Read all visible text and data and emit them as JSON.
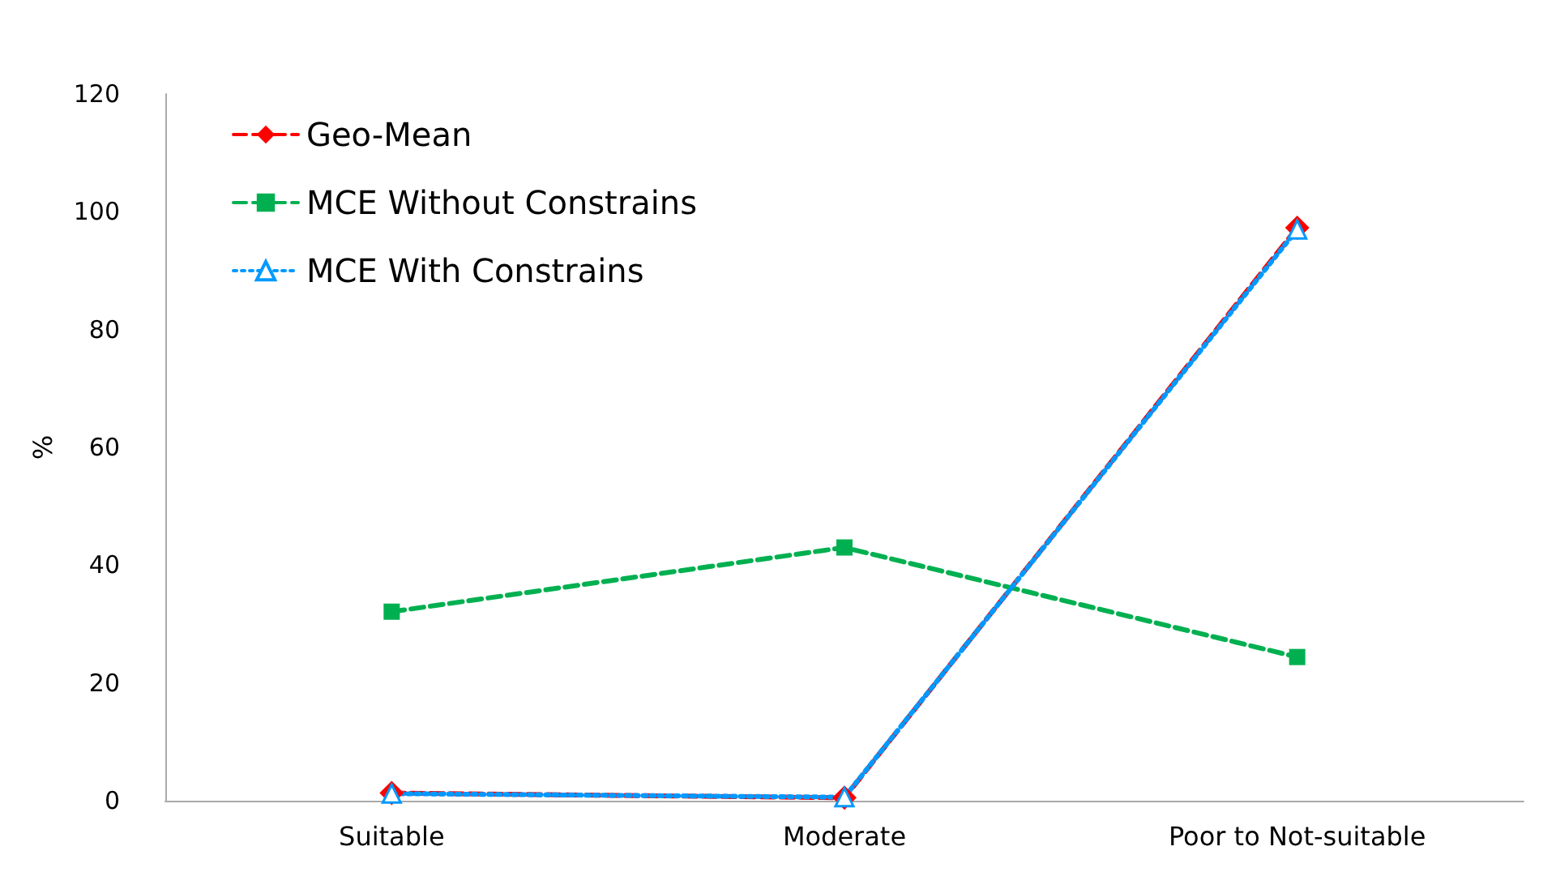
{
  "chart_data": {
    "type": "line",
    "ylabel": "%",
    "categories": [
      "Suitable",
      "Moderate",
      "Poor to Not-suitable"
    ],
    "series": [
      {
        "name": "Geo-Mean",
        "color": "#ff0000",
        "values": [
          1.3,
          0.5,
          97.3
        ],
        "marker": "diamond",
        "line_style": "dashed"
      },
      {
        "name": "MCE Without Constrains",
        "color": "#00b050",
        "values": [
          32.1,
          43.0,
          24.4
        ],
        "marker": "square",
        "line_style": "dashed"
      },
      {
        "name": "MCE With Constrains",
        "color": "#0099ff",
        "values": [
          1.2,
          0.6,
          97.0
        ],
        "marker": "triangle",
        "line_style": "dotted"
      }
    ],
    "ylim": [
      0,
      120
    ],
    "yticks": [
      0,
      20,
      40,
      60,
      80,
      100,
      120
    ],
    "grid": false,
    "legend": "top left"
  }
}
